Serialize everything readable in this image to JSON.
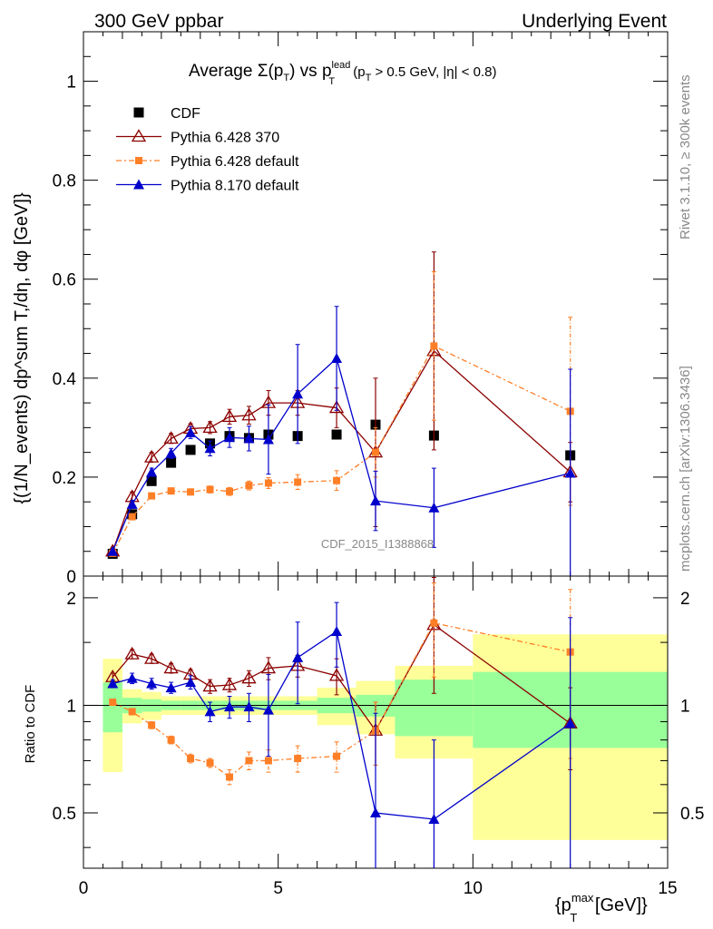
{
  "header": {
    "left": "300 GeV ppbar",
    "right": "Underlying Event"
  },
  "side_labels": {
    "rivet": "Rivet 3.1.10, ≥ 300k events",
    "mcplots": "mcplots.cern.ch [arXiv:1306.3436]"
  },
  "colors": {
    "cdf": "#000000",
    "p6_370": "#8b0000",
    "p6_default": "#ff7f27",
    "p8_default": "#0000cc",
    "band_inner": "#99ff99",
    "band_outer": "#ffff99"
  },
  "chart_data": [
    {
      "type": "scatter",
      "panel": "main",
      "title": "Average Σ(pT) vs pT^lead (pT > 0.5 GeV, |η| < 0.8)",
      "title_parts": {
        "pre": "Average ",
        "sigma": "Σ(p",
        "sub_T1": "T",
        "close": ") vs p",
        "sup_lead": "lead",
        "sub_T2": "T",
        "cut_pre": " (p",
        "sub_T3": "T",
        "cut_post": " > 0.5 GeV, |η| < 0.8)"
      },
      "ylabel": "{(1/N_events) dp^sum T,/dη, dφ [GeV]}",
      "watermark": "CDF_2015_I1388868",
      "xlim": [
        0,
        15
      ],
      "ylim": [
        0,
        1.1
      ],
      "yticks": [
        0,
        0.2,
        0.4,
        0.6,
        0.8,
        1
      ],
      "ytick_labels": [
        "0",
        "0.2",
        "0.4",
        "0.6",
        "0.8",
        "1"
      ],
      "legend": {
        "placement": "top-left"
      },
      "series": [
        {
          "name": "CDF",
          "marker": "square",
          "x": [
            0.75,
            1.25,
            1.75,
            2.25,
            2.75,
            3.25,
            3.75,
            4.25,
            4.75,
            5.5,
            6.5,
            7.5,
            9.0,
            12.5
          ],
          "y": [
            0.045,
            0.125,
            0.192,
            0.229,
            0.255,
            0.268,
            0.283,
            0.279,
            0.286,
            0.283,
            0.286,
            0.306,
            0.284,
            0.244
          ]
        },
        {
          "name": "Pythia 6.428 370",
          "marker": "open-triangle",
          "x": [
            0.75,
            1.25,
            1.75,
            2.25,
            2.75,
            3.25,
            3.75,
            4.25,
            4.75,
            5.5,
            6.5,
            7.5,
            9.0,
            12.5
          ],
          "y": [
            0.05,
            0.16,
            0.24,
            0.278,
            0.298,
            0.3,
            0.322,
            0.325,
            0.35,
            0.35,
            0.34,
            0.25,
            0.455,
            0.21
          ],
          "err": [
            0.005,
            0.01,
            0.01,
            0.01,
            0.01,
            0.012,
            0.015,
            0.018,
            0.025,
            0.025,
            0.04,
            0.15,
            0.2,
            0.06
          ]
        },
        {
          "name": "Pythia 6.428 default",
          "marker": "small-square-dashdot",
          "x": [
            0.75,
            1.25,
            1.75,
            2.25,
            2.75,
            3.25,
            3.75,
            4.25,
            4.75,
            5.5,
            6.5,
            7.5,
            9.0,
            12.5
          ],
          "y": [
            0.046,
            0.12,
            0.162,
            0.172,
            0.17,
            0.175,
            0.171,
            0.183,
            0.188,
            0.19,
            0.193,
            0.25,
            0.465,
            0.333
          ],
          "err": [
            0.004,
            0.005,
            0.006,
            0.006,
            0.006,
            0.007,
            0.008,
            0.009,
            0.011,
            0.015,
            0.02,
            0.05,
            0.15,
            0.19
          ]
        },
        {
          "name": "Pythia 8.170 default",
          "marker": "filled-triangle",
          "x": [
            0.75,
            1.25,
            1.75,
            2.25,
            2.75,
            3.25,
            3.75,
            4.25,
            4.75,
            5.5,
            6.5,
            7.5,
            9.0,
            12.5
          ],
          "y": [
            0.05,
            0.145,
            0.21,
            0.248,
            0.29,
            0.258,
            0.28,
            0.278,
            0.276,
            0.368,
            0.44,
            0.152,
            0.138,
            0.208
          ],
          "err": [
            0.004,
            0.008,
            0.008,
            0.01,
            0.012,
            0.015,
            0.02,
            0.025,
            0.07,
            0.1,
            0.105,
            0.06,
            0.08,
            0.21
          ]
        }
      ]
    },
    {
      "type": "scatter",
      "panel": "ratio",
      "ylabel": "Ratio to CDF",
      "xlabel": "{p_T^max [GeV]}",
      "xlabel_parts": {
        "pre": "{p",
        "sup": "max",
        "sub": "T",
        "post": " [GeV]}"
      },
      "xlim": [
        0,
        15
      ],
      "ylim": [
        0.35,
        2.3
      ],
      "xticks": [
        0,
        5,
        10,
        15
      ],
      "xtick_labels": [
        "0",
        "5",
        "10",
        "15"
      ],
      "yticks": [
        0.5,
        1,
        2
      ],
      "ytick_labels": [
        "0.5",
        "1",
        "2"
      ],
      "reference_line": 1,
      "bands": {
        "bin_edges": [
          0.5,
          1.0,
          1.5,
          2.0,
          2.5,
          3.0,
          3.5,
          4.0,
          4.5,
          5.0,
          6.0,
          7.0,
          8.0,
          10.0,
          15.0
        ],
        "inner": [
          0.16,
          0.05,
          0.04,
          0.03,
          0.03,
          0.03,
          0.03,
          0.03,
          0.03,
          0.03,
          0.05,
          0.07,
          0.18,
          0.24
        ],
        "outer": [
          0.35,
          0.11,
          0.09,
          0.06,
          0.06,
          0.06,
          0.06,
          0.06,
          0.06,
          0.06,
          0.12,
          0.17,
          0.29,
          0.58
        ]
      },
      "series": [
        {
          "name": "Pythia 6.428 370",
          "x": [
            0.75,
            1.25,
            1.75,
            2.25,
            2.75,
            3.25,
            3.75,
            4.25,
            4.75,
            5.5,
            6.5,
            7.5,
            9.0,
            12.5
          ],
          "y": [
            1.2,
            1.39,
            1.35,
            1.27,
            1.22,
            1.13,
            1.14,
            1.19,
            1.27,
            1.29,
            1.21,
            0.85,
            1.68,
            0.89
          ],
          "err": [
            0.03,
            0.04,
            0.04,
            0.04,
            0.04,
            0.05,
            0.05,
            0.06,
            0.09,
            0.09,
            0.14,
            0.17,
            0.6,
            0.23
          ]
        },
        {
          "name": "Pythia 6.428 default",
          "x": [
            0.75,
            1.25,
            1.75,
            2.25,
            2.75,
            3.25,
            3.75,
            4.25,
            4.75,
            5.5,
            6.5,
            7.5,
            9.0,
            12.5
          ],
          "y": [
            1.02,
            0.96,
            0.88,
            0.8,
            0.71,
            0.69,
            0.63,
            0.7,
            0.7,
            0.71,
            0.72,
            0.85,
            1.7,
            1.41
          ],
          "err": [
            0.02,
            0.02,
            0.02,
            0.02,
            0.02,
            0.02,
            0.03,
            0.04,
            0.05,
            0.06,
            0.07,
            0.17,
            0.5,
            0.7
          ]
        },
        {
          "name": "Pythia 8.170 default",
          "x": [
            0.75,
            1.25,
            1.75,
            2.25,
            2.75,
            3.25,
            3.75,
            4.25,
            4.75,
            5.5,
            6.5,
            7.5,
            9.0,
            12.5
          ],
          "y": [
            1.15,
            1.19,
            1.15,
            1.12,
            1.16,
            0.96,
            0.99,
            0.99,
            0.97,
            1.36,
            1.61,
            0.5,
            0.48,
            0.89
          ],
          "err": [
            0.03,
            0.04,
            0.04,
            0.04,
            0.05,
            0.06,
            0.07,
            0.09,
            0.25,
            0.35,
            0.33,
            0.45,
            0.32,
            0.87
          ]
        }
      ]
    }
  ]
}
